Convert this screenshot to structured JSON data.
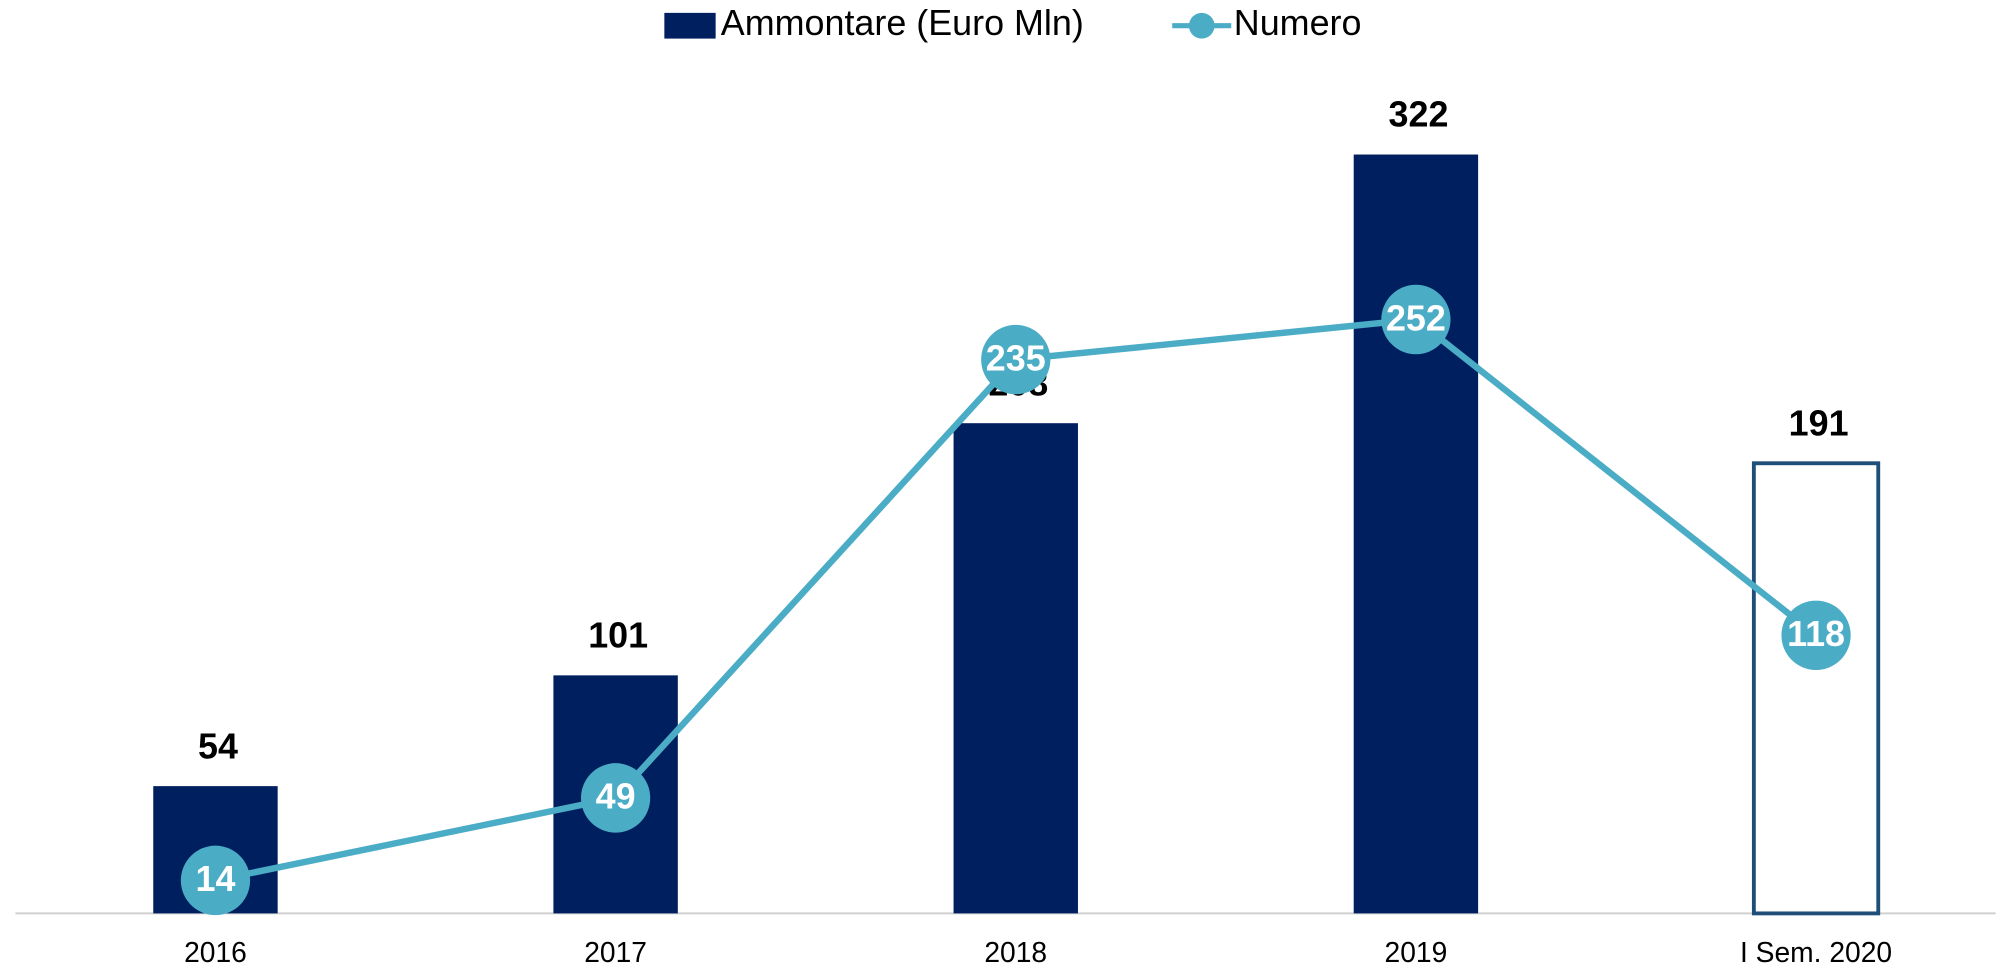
{
  "chart_data": {
    "type": "bar_line",
    "categories": [
      "2016",
      "2017",
      "2018",
      "2019",
      "I Sem. 2020"
    ],
    "series": [
      {
        "name": "Ammontare (Euro Mln)",
        "color": "#001f5f",
        "values": [
          54,
          101,
          208,
          322,
          191
        ],
        "fill_colors": [
          "#001f5f",
          "#001f5f",
          "#001f5f",
          "#001f5f",
          "#ffffff"
        ],
        "edge_colors": [
          "#001f5f",
          "#001f5f",
          "#001f5f",
          "#001f5f",
          "#1f4e79"
        ]
      },
      {
        "name": "Numero",
        "color": "#4bacc6",
        "values": [
          14,
          49,
          235,
          252,
          118
        ],
        "axis": "y2"
      }
    ],
    "ylim": [
      0,
      360
    ],
    "y2lim": [
      0,
      360
    ]
  }
}
